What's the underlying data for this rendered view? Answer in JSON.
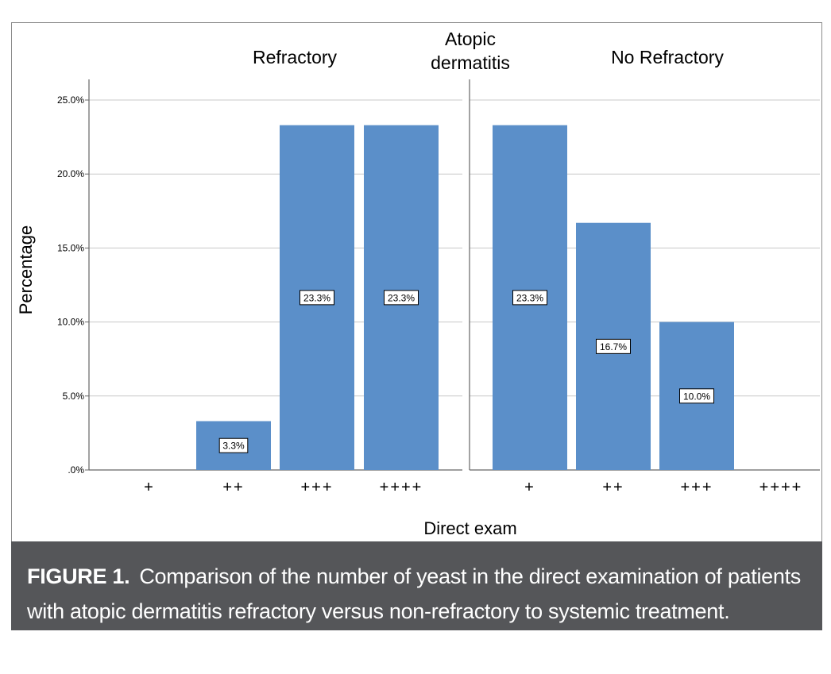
{
  "chart_data": {
    "type": "bar",
    "title": "Atopic dermatitis",
    "xlabel": "Direct exam",
    "ylabel": "Percentage",
    "yticks": [
      ".0%",
      "5.0%",
      "10.0%",
      "15.0%",
      "20.0%",
      "25.0%"
    ],
    "ylim": [
      0,
      26
    ],
    "grid": true,
    "bar_color": "#5b8fc9",
    "panels": [
      {
        "name": "Refractory",
        "categories": [
          "+",
          "++",
          "+++",
          "++++"
        ],
        "values": [
          0,
          3.3,
          23.3,
          23.3
        ],
        "labels": [
          "",
          "3.3%",
          "23.3%",
          "23.3%"
        ]
      },
      {
        "name": "No Refractory",
        "categories": [
          "+",
          "++",
          "+++",
          "++++"
        ],
        "values": [
          23.3,
          16.7,
          10.0,
          0
        ],
        "labels": [
          "23.3%",
          "16.7%",
          "10.0%",
          ""
        ]
      }
    ]
  },
  "caption": {
    "label": "FIGURE 1.",
    "text": "Comparison of the number of yeast in the direct examination of patients with atopic dermatitis refractory versus non-refractory to systemic treatment."
  },
  "colors": {
    "caption_bg": "#555659",
    "caption_text": "#ffffff",
    "grid": "#c8c8c8",
    "axis": "#666666"
  }
}
